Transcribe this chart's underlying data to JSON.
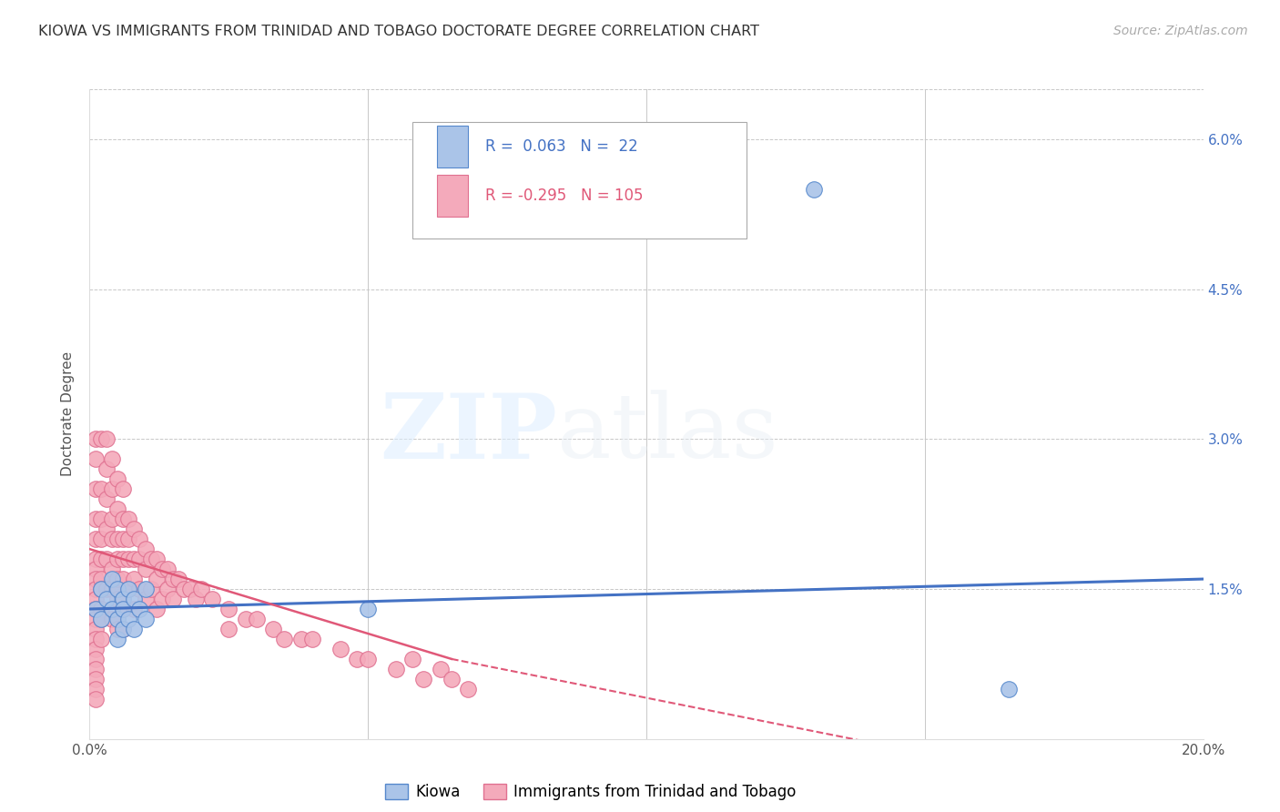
{
  "title": "KIOWA VS IMMIGRANTS FROM TRINIDAD AND TOBAGO DOCTORATE DEGREE CORRELATION CHART",
  "source": "Source: ZipAtlas.com",
  "ylabel": "Doctorate Degree",
  "xlim": [
    0.0,
    0.2
  ],
  "ylim": [
    0.0,
    0.065
  ],
  "xticks": [
    0.0,
    0.05,
    0.1,
    0.15,
    0.2
  ],
  "xticklabels": [
    "0.0%",
    "",
    "",
    "",
    "20.0%"
  ],
  "yticks": [
    0.0,
    0.015,
    0.03,
    0.045,
    0.06
  ],
  "yticklabels": [
    "",
    "1.5%",
    "3.0%",
    "4.5%",
    "6.0%"
  ],
  "kiowa_color": "#aac4e8",
  "tt_color": "#f4aabb",
  "kiowa_edge": "#5588cc",
  "tt_edge": "#e07090",
  "kiowa_R": 0.063,
  "kiowa_N": 22,
  "tt_R": -0.295,
  "tt_N": 105,
  "legend_label_kiowa": "Kiowa",
  "legend_label_tt": "Immigrants from Trinidad and Tobago",
  "kiowa_line_color": "#4472c4",
  "tt_line_color": "#e05878",
  "kiowa_line": [
    0.0,
    0.2,
    0.013,
    0.016
  ],
  "tt_line_solid": [
    0.0,
    0.065,
    0.019,
    0.008
  ],
  "tt_line_dashed": [
    0.065,
    0.2,
    0.008,
    -0.007
  ],
  "background_color": "#ffffff",
  "grid_color": "#c8c8c8",
  "kiowa_x": [
    0.001,
    0.002,
    0.002,
    0.003,
    0.004,
    0.004,
    0.005,
    0.005,
    0.005,
    0.006,
    0.006,
    0.006,
    0.007,
    0.007,
    0.008,
    0.008,
    0.009,
    0.01,
    0.01,
    0.05,
    0.13,
    0.165
  ],
  "kiowa_y": [
    0.013,
    0.015,
    0.012,
    0.014,
    0.013,
    0.016,
    0.015,
    0.012,
    0.01,
    0.014,
    0.013,
    0.011,
    0.015,
    0.012,
    0.014,
    0.011,
    0.013,
    0.015,
    0.012,
    0.013,
    0.055,
    0.005
  ],
  "tt_x": [
    0.001,
    0.001,
    0.001,
    0.001,
    0.001,
    0.001,
    0.001,
    0.001,
    0.001,
    0.001,
    0.001,
    0.001,
    0.001,
    0.001,
    0.001,
    0.001,
    0.001,
    0.001,
    0.001,
    0.001,
    0.002,
    0.002,
    0.002,
    0.002,
    0.002,
    0.002,
    0.002,
    0.002,
    0.002,
    0.002,
    0.003,
    0.003,
    0.003,
    0.003,
    0.003,
    0.003,
    0.004,
    0.004,
    0.004,
    0.004,
    0.004,
    0.004,
    0.004,
    0.005,
    0.005,
    0.005,
    0.005,
    0.005,
    0.005,
    0.005,
    0.006,
    0.006,
    0.006,
    0.006,
    0.006,
    0.006,
    0.006,
    0.007,
    0.007,
    0.007,
    0.007,
    0.008,
    0.008,
    0.008,
    0.008,
    0.009,
    0.009,
    0.009,
    0.01,
    0.01,
    0.01,
    0.011,
    0.011,
    0.012,
    0.012,
    0.012,
    0.013,
    0.013,
    0.014,
    0.014,
    0.015,
    0.015,
    0.016,
    0.017,
    0.018,
    0.019,
    0.02,
    0.022,
    0.025,
    0.025,
    0.028,
    0.03,
    0.033,
    0.035,
    0.038,
    0.04,
    0.045,
    0.048,
    0.05,
    0.055,
    0.058,
    0.06,
    0.063,
    0.065,
    0.068
  ],
  "tt_y": [
    0.03,
    0.028,
    0.025,
    0.022,
    0.02,
    0.018,
    0.017,
    0.016,
    0.015,
    0.014,
    0.013,
    0.012,
    0.011,
    0.01,
    0.009,
    0.008,
    0.007,
    0.006,
    0.005,
    0.004,
    0.03,
    0.025,
    0.022,
    0.02,
    0.018,
    0.016,
    0.015,
    0.013,
    0.012,
    0.01,
    0.03,
    0.027,
    0.024,
    0.021,
    0.018,
    0.015,
    0.028,
    0.025,
    0.022,
    0.02,
    0.017,
    0.015,
    0.012,
    0.026,
    0.023,
    0.02,
    0.018,
    0.016,
    0.014,
    0.011,
    0.025,
    0.022,
    0.02,
    0.018,
    0.016,
    0.013,
    0.011,
    0.022,
    0.02,
    0.018,
    0.015,
    0.021,
    0.018,
    0.016,
    0.013,
    0.02,
    0.018,
    0.015,
    0.019,
    0.017,
    0.014,
    0.018,
    0.015,
    0.018,
    0.016,
    0.013,
    0.017,
    0.014,
    0.017,
    0.015,
    0.016,
    0.014,
    0.016,
    0.015,
    0.015,
    0.014,
    0.015,
    0.014,
    0.013,
    0.011,
    0.012,
    0.012,
    0.011,
    0.01,
    0.01,
    0.01,
    0.009,
    0.008,
    0.008,
    0.007,
    0.008,
    0.006,
    0.007,
    0.006,
    0.005
  ]
}
